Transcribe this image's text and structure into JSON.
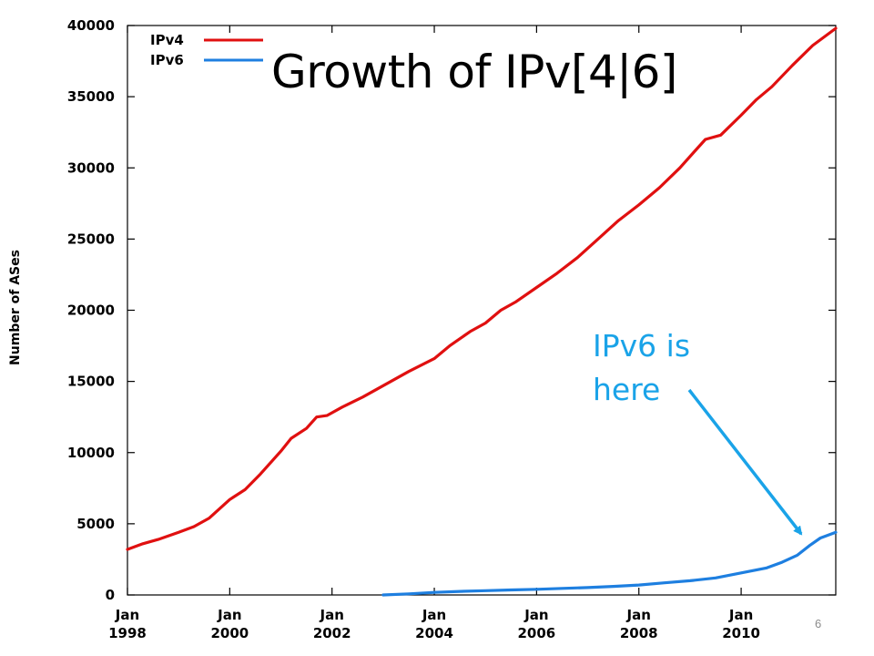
{
  "slide": {
    "title": "Growth of IPv[4|6]",
    "callout": "IPv6 is here",
    "page_number": "6"
  },
  "colors": {
    "ipv4": "#e01010",
    "ipv6": "#1e7fe0",
    "callout": "#1aa3e8",
    "axis": "#000000"
  },
  "chart_data": {
    "type": "line",
    "title": "",
    "xlabel": "",
    "ylabel": "Number of ASes",
    "xlim": [
      1998.0,
      2011.85
    ],
    "ylim": [
      0,
      40000
    ],
    "y_ticks": [
      0,
      5000,
      10000,
      15000,
      20000,
      25000,
      30000,
      35000,
      40000
    ],
    "x_ticks": [
      {
        "x": 1998,
        "line1": "Jan",
        "line2": "1998"
      },
      {
        "x": 2000,
        "line1": "Jan",
        "line2": "2000"
      },
      {
        "x": 2002,
        "line1": "Jan",
        "line2": "2002"
      },
      {
        "x": 2004,
        "line1": "Jan",
        "line2": "2004"
      },
      {
        "x": 2006,
        "line1": "Jan",
        "line2": "2006"
      },
      {
        "x": 2008,
        "line1": "Jan",
        "line2": "2008"
      },
      {
        "x": 2010,
        "line1": "Jan",
        "line2": "2010"
      }
    ],
    "legend_position": "top-left",
    "series": [
      {
        "name": "IPv4",
        "points": [
          [
            1998.0,
            3200
          ],
          [
            1998.3,
            3600
          ],
          [
            1998.6,
            3900
          ],
          [
            1999.0,
            4400
          ],
          [
            1999.3,
            4800
          ],
          [
            1999.6,
            5400
          ],
          [
            2000.0,
            6700
          ],
          [
            2000.3,
            7400
          ],
          [
            2000.6,
            8500
          ],
          [
            2001.0,
            10100
          ],
          [
            2001.2,
            11000
          ],
          [
            2001.5,
            11700
          ],
          [
            2001.7,
            12500
          ],
          [
            2001.9,
            12600
          ],
          [
            2002.2,
            13200
          ],
          [
            2002.6,
            13900
          ],
          [
            2003.0,
            14700
          ],
          [
            2003.5,
            15700
          ],
          [
            2004.0,
            16600
          ],
          [
            2004.3,
            17500
          ],
          [
            2004.7,
            18500
          ],
          [
            2005.0,
            19100
          ],
          [
            2005.3,
            20000
          ],
          [
            2005.6,
            20600
          ],
          [
            2006.0,
            21600
          ],
          [
            2006.4,
            22600
          ],
          [
            2006.8,
            23700
          ],
          [
            2007.2,
            25000
          ],
          [
            2007.6,
            26300
          ],
          [
            2008.0,
            27400
          ],
          [
            2008.4,
            28600
          ],
          [
            2008.8,
            30000
          ],
          [
            2009.1,
            31200
          ],
          [
            2009.3,
            32000
          ],
          [
            2009.6,
            32300
          ],
          [
            2010.0,
            33700
          ],
          [
            2010.3,
            34800
          ],
          [
            2010.6,
            35700
          ],
          [
            2011.0,
            37200
          ],
          [
            2011.4,
            38600
          ],
          [
            2011.85,
            39800
          ]
        ]
      },
      {
        "name": "IPv6",
        "points": [
          [
            2003.0,
            0
          ],
          [
            2003.5,
            80
          ],
          [
            2004.0,
            180
          ],
          [
            2004.5,
            250
          ],
          [
            2005.0,
            300
          ],
          [
            2005.5,
            350
          ],
          [
            2006.0,
            400
          ],
          [
            2006.5,
            460
          ],
          [
            2007.0,
            520
          ],
          [
            2007.5,
            600
          ],
          [
            2008.0,
            700
          ],
          [
            2008.5,
            850
          ],
          [
            2009.0,
            1000
          ],
          [
            2009.5,
            1200
          ],
          [
            2010.0,
            1550
          ],
          [
            2010.5,
            1900
          ],
          [
            2010.8,
            2300
          ],
          [
            2011.1,
            2800
          ],
          [
            2011.35,
            3500
          ],
          [
            2011.55,
            4000
          ],
          [
            2011.85,
            4400
          ]
        ]
      }
    ]
  }
}
